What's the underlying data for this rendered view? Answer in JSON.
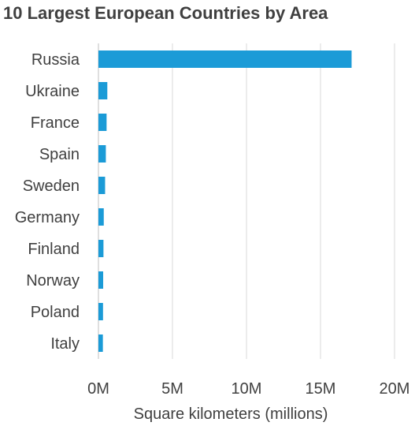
{
  "chart_data": {
    "type": "bar",
    "orientation": "horizontal",
    "title": "10 Largest European Countries by Area",
    "xlabel": "Square kilometers (millions)",
    "ylabel": "",
    "categories": [
      "Russia",
      "Ukraine",
      "France",
      "Spain",
      "Sweden",
      "Germany",
      "Finland",
      "Norway",
      "Poland",
      "Italy"
    ],
    "values": [
      17.1,
      0.6,
      0.55,
      0.5,
      0.45,
      0.36,
      0.34,
      0.32,
      0.31,
      0.3
    ],
    "xlim": [
      0,
      20
    ],
    "xticks": [
      0,
      5,
      10,
      15,
      20
    ],
    "xtick_labels": [
      "0M",
      "5M",
      "10M",
      "15M",
      "20M"
    ],
    "grid": "vertical",
    "legend": "none",
    "bar_color": "#1b9bd7",
    "grid_color": "#d9d9d9"
  }
}
